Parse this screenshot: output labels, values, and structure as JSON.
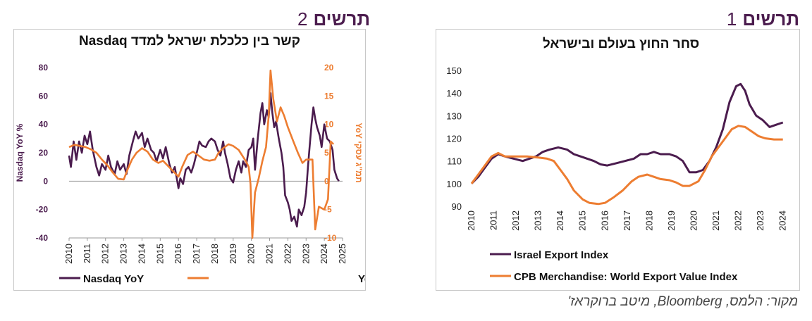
{
  "figure1": {
    "word": "תרשים",
    "number": "1"
  },
  "figure2": {
    "word": "תרשים",
    "number": "2"
  },
  "source": "מקור: הלמס, Bloomberg, מיטב ברוקראז'",
  "colors": {
    "purple": "#4B1C4E",
    "orange": "#ED7D31"
  },
  "chart_data": [
    {
      "id": "fig2",
      "type": "line",
      "title": "קשר בין כלכלת ישראל למדד Nasdaq",
      "xlabel": "",
      "ylabel": "Nasdaq YoY %",
      "y2label": "תמ\"ג עסקי YoY",
      "x_ticks": [
        "2010",
        "2011",
        "2012",
        "2013",
        "2014",
        "2015",
        "2016",
        "2017",
        "2018",
        "2019",
        "2020",
        "2021",
        "2022",
        "2023",
        "2024",
        "2025"
      ],
      "y_ticks": [
        -40,
        -20,
        0,
        20,
        40,
        60,
        80
      ],
      "y2_ticks": [
        -10,
        -5,
        0,
        5,
        10,
        15,
        20
      ],
      "ylim": [
        -40,
        80
      ],
      "y2lim": [
        -10,
        20
      ],
      "xlim": [
        2010,
        2025
      ],
      "grid": false,
      "legend": "bottom",
      "series": [
        {
          "name": "Nasdaq YoY",
          "axis": "left",
          "color": "#4B1C4E",
          "points": [
            [
              2010.0,
              18
            ],
            [
              2010.1,
              10
            ],
            [
              2010.25,
              28
            ],
            [
              2010.4,
              15
            ],
            [
              2010.55,
              28
            ],
            [
              2010.7,
              20
            ],
            [
              2010.85,
              32
            ],
            [
              2011.0,
              26
            ],
            [
              2011.15,
              35
            ],
            [
              2011.3,
              22
            ],
            [
              2011.5,
              10
            ],
            [
              2011.65,
              4
            ],
            [
              2011.8,
              12
            ],
            [
              2012.0,
              8
            ],
            [
              2012.15,
              18
            ],
            [
              2012.3,
              10
            ],
            [
              2012.5,
              5
            ],
            [
              2012.65,
              14
            ],
            [
              2012.8,
              8
            ],
            [
              2013.0,
              12
            ],
            [
              2013.15,
              5
            ],
            [
              2013.3,
              18
            ],
            [
              2013.5,
              28
            ],
            [
              2013.65,
              35
            ],
            [
              2013.8,
              30
            ],
            [
              2014.0,
              34
            ],
            [
              2014.15,
              24
            ],
            [
              2014.3,
              30
            ],
            [
              2014.5,
              22
            ],
            [
              2014.65,
              20
            ],
            [
              2014.8,
              14
            ],
            [
              2015.0,
              22
            ],
            [
              2015.15,
              16
            ],
            [
              2015.3,
              24
            ],
            [
              2015.5,
              12
            ],
            [
              2015.65,
              6
            ],
            [
              2015.8,
              10
            ],
            [
              2016.0,
              -5
            ],
            [
              2016.1,
              2
            ],
            [
              2016.25,
              -2
            ],
            [
              2016.4,
              8
            ],
            [
              2016.55,
              10
            ],
            [
              2016.7,
              6
            ],
            [
              2016.85,
              12
            ],
            [
              2017.0,
              20
            ],
            [
              2017.15,
              28
            ],
            [
              2017.3,
              25
            ],
            [
              2017.5,
              24
            ],
            [
              2017.65,
              28
            ],
            [
              2017.8,
              30
            ],
            [
              2018.0,
              28
            ],
            [
              2018.15,
              22
            ],
            [
              2018.3,
              18
            ],
            [
              2018.45,
              28
            ],
            [
              2018.55,
              20
            ],
            [
              2018.7,
              12
            ],
            [
              2018.85,
              2
            ],
            [
              2019.0,
              -1
            ],
            [
              2019.15,
              8
            ],
            [
              2019.3,
              14
            ],
            [
              2019.45,
              6
            ],
            [
              2019.55,
              14
            ],
            [
              2019.7,
              10
            ],
            [
              2019.85,
              22
            ],
            [
              2020.0,
              24
            ],
            [
              2020.1,
              30
            ],
            [
              2020.2,
              8
            ],
            [
              2020.35,
              30
            ],
            [
              2020.5,
              48
            ],
            [
              2020.6,
              55
            ],
            [
              2020.7,
              40
            ],
            [
              2020.85,
              50
            ],
            [
              2020.95,
              45
            ],
            [
              2021.05,
              62
            ],
            [
              2021.15,
              48
            ],
            [
              2021.25,
              38
            ],
            [
              2021.35,
              42
            ],
            [
              2021.5,
              30
            ],
            [
              2021.65,
              20
            ],
            [
              2021.75,
              10
            ],
            [
              2021.85,
              -10
            ],
            [
              2022.0,
              -15
            ],
            [
              2022.1,
              -20
            ],
            [
              2022.2,
              -28
            ],
            [
              2022.35,
              -25
            ],
            [
              2022.5,
              -32
            ],
            [
              2022.6,
              -20
            ],
            [
              2022.75,
              -24
            ],
            [
              2022.9,
              -18
            ],
            [
              2023.0,
              -8
            ],
            [
              2023.1,
              10
            ],
            [
              2023.2,
              25
            ],
            [
              2023.3,
              40
            ],
            [
              2023.4,
              52
            ],
            [
              2023.5,
              44
            ],
            [
              2023.6,
              38
            ],
            [
              2023.75,
              32
            ],
            [
              2023.85,
              24
            ],
            [
              2024.0,
              40
            ],
            [
              2024.15,
              30
            ],
            [
              2024.3,
              28
            ],
            [
              2024.45,
              22
            ],
            [
              2024.55,
              8
            ],
            [
              2024.7,
              2
            ],
            [
              2024.8,
              0
            ]
          ]
        },
        {
          "name": "ישראל - תמ\"ג עסקי YoY",
          "axis": "right",
          "color": "#ED7D31",
          "points": [
            [
              2010.0,
              6.0
            ],
            [
              2010.3,
              6.4
            ],
            [
              2010.6,
              6.2
            ],
            [
              2010.9,
              6.0
            ],
            [
              2011.2,
              5.6
            ],
            [
              2011.5,
              5.0
            ],
            [
              2011.8,
              3.8
            ],
            [
              2012.1,
              2.8
            ],
            [
              2012.4,
              1.5
            ],
            [
              2012.7,
              0.4
            ],
            [
              2013.0,
              0.3
            ],
            [
              2013.2,
              2.0
            ],
            [
              2013.45,
              3.8
            ],
            [
              2013.7,
              5.0
            ],
            [
              2014.0,
              5.8
            ],
            [
              2014.3,
              5.2
            ],
            [
              2014.6,
              3.8
            ],
            [
              2014.9,
              3.2
            ],
            [
              2015.15,
              3.6
            ],
            [
              2015.45,
              2.6
            ],
            [
              2015.75,
              1.6
            ],
            [
              2016.0,
              0.8
            ],
            [
              2016.2,
              2.5
            ],
            [
              2016.5,
              4.6
            ],
            [
              2016.8,
              5.2
            ],
            [
              2017.1,
              4.5
            ],
            [
              2017.4,
              3.8
            ],
            [
              2017.7,
              3.6
            ],
            [
              2018.0,
              3.8
            ],
            [
              2018.2,
              5.0
            ],
            [
              2018.45,
              5.8
            ],
            [
              2018.75,
              6.5
            ],
            [
              2019.0,
              6.2
            ],
            [
              2019.3,
              5.5
            ],
            [
              2019.5,
              4.5
            ],
            [
              2019.7,
              3.5
            ],
            [
              2019.85,
              2.5
            ],
            [
              2019.95,
              -0.5
            ],
            [
              2020.05,
              -10.0
            ],
            [
              2020.2,
              -2.0
            ],
            [
              2020.4,
              0.5
            ],
            [
              2020.6,
              3.5
            ],
            [
              2020.8,
              6.0
            ],
            [
              2020.95,
              11.5
            ],
            [
              2021.05,
              19.5
            ],
            [
              2021.2,
              14.5
            ],
            [
              2021.4,
              10.5
            ],
            [
              2021.6,
              13.0
            ],
            [
              2021.8,
              11.5
            ],
            [
              2022.0,
              9.5
            ],
            [
              2022.3,
              7.0
            ],
            [
              2022.55,
              5.0
            ],
            [
              2022.8,
              3.2
            ],
            [
              2023.0,
              3.8
            ],
            [
              2023.35,
              3.8
            ],
            [
              2023.5,
              -8.5
            ],
            [
              2023.7,
              -4.5
            ],
            [
              2024.0,
              -5.0
            ],
            [
              2024.2,
              -3.2
            ],
            [
              2024.35,
              7.0
            ],
            [
              2024.5,
              6.5
            ]
          ]
        }
      ]
    },
    {
      "id": "fig1",
      "type": "line",
      "title": "סחר החוץ בעולם ובישראל",
      "xlabel": "",
      "ylabel": "",
      "x_ticks": [
        "2010",
        "2011",
        "2012",
        "2013",
        "2014",
        "2015",
        "2016",
        "2017",
        "2018",
        "2019",
        "2020",
        "2021",
        "2022",
        "2023",
        "2024"
      ],
      "y_ticks": [
        90,
        100,
        110,
        120,
        130,
        140,
        150
      ],
      "ylim": [
        90,
        150
      ],
      "xlim": [
        2010,
        2024.2
      ],
      "grid": false,
      "legend": "bottom-left",
      "series": [
        {
          "name": "Israel Export Index",
          "color": "#4B1C4E",
          "points": [
            [
              2010.0,
              100
            ],
            [
              2010.3,
              103
            ],
            [
              2010.6,
              107
            ],
            [
              2010.9,
              111
            ],
            [
              2011.2,
              113
            ],
            [
              2011.5,
              112
            ],
            [
              2011.9,
              111
            ],
            [
              2012.3,
              110
            ],
            [
              2012.6,
              111
            ],
            [
              2012.9,
              112
            ],
            [
              2013.2,
              114
            ],
            [
              2013.5,
              115
            ],
            [
              2013.9,
              116
            ],
            [
              2014.3,
              115
            ],
            [
              2014.6,
              113
            ],
            [
              2014.9,
              112
            ],
            [
              2015.2,
              111
            ],
            [
              2015.5,
              110
            ],
            [
              2015.8,
              108.5
            ],
            [
              2016.1,
              108
            ],
            [
              2016.5,
              109
            ],
            [
              2016.9,
              110
            ],
            [
              2017.3,
              111
            ],
            [
              2017.6,
              113
            ],
            [
              2017.9,
              113
            ],
            [
              2018.2,
              114
            ],
            [
              2018.5,
              113
            ],
            [
              2018.9,
              113
            ],
            [
              2019.2,
              112
            ],
            [
              2019.5,
              110
            ],
            [
              2019.8,
              105
            ],
            [
              2020.1,
              105
            ],
            [
              2020.4,
              106
            ],
            [
              2020.7,
              110
            ],
            [
              2021.0,
              116
            ],
            [
              2021.3,
              124
            ],
            [
              2021.6,
              136
            ],
            [
              2021.9,
              143
            ],
            [
              2022.1,
              144
            ],
            [
              2022.3,
              141
            ],
            [
              2022.5,
              135
            ],
            [
              2022.8,
              130
            ],
            [
              2023.1,
              128
            ],
            [
              2023.4,
              125
            ],
            [
              2023.7,
              126
            ],
            [
              2024.0,
              127
            ]
          ]
        },
        {
          "name": "CPB Merchandise: World Export Value  Index",
          "color": "#ED7D31",
          "points": [
            [
              2010.0,
              100
            ],
            [
              2010.3,
              104
            ],
            [
              2010.6,
              108
            ],
            [
              2010.9,
              112
            ],
            [
              2011.2,
              113.5
            ],
            [
              2011.5,
              112
            ],
            [
              2012.0,
              112
            ],
            [
              2012.5,
              112
            ],
            [
              2013.0,
              111.5
            ],
            [
              2013.4,
              111
            ],
            [
              2013.7,
              110
            ],
            [
              2014.0,
              106
            ],
            [
              2014.3,
              102
            ],
            [
              2014.6,
              97
            ],
            [
              2015.0,
              93
            ],
            [
              2015.3,
              91.5
            ],
            [
              2015.7,
              91
            ],
            [
              2016.0,
              91.5
            ],
            [
              2016.4,
              94
            ],
            [
              2016.8,
              97
            ],
            [
              2017.2,
              101
            ],
            [
              2017.5,
              103
            ],
            [
              2017.9,
              104
            ],
            [
              2018.2,
              103
            ],
            [
              2018.5,
              102
            ],
            [
              2018.9,
              101.5
            ],
            [
              2019.2,
              100.5
            ],
            [
              2019.5,
              99
            ],
            [
              2019.8,
              99
            ],
            [
              2020.2,
              101
            ],
            [
              2020.5,
              106
            ],
            [
              2020.8,
              112
            ],
            [
              2021.1,
              116
            ],
            [
              2021.4,
              120
            ],
            [
              2021.7,
              124
            ],
            [
              2022.0,
              125.5
            ],
            [
              2022.3,
              125
            ],
            [
              2022.6,
              123
            ],
            [
              2022.9,
              121
            ],
            [
              2023.2,
              120
            ],
            [
              2023.6,
              119.5
            ],
            [
              2024.0,
              119.5
            ]
          ]
        }
      ]
    }
  ]
}
